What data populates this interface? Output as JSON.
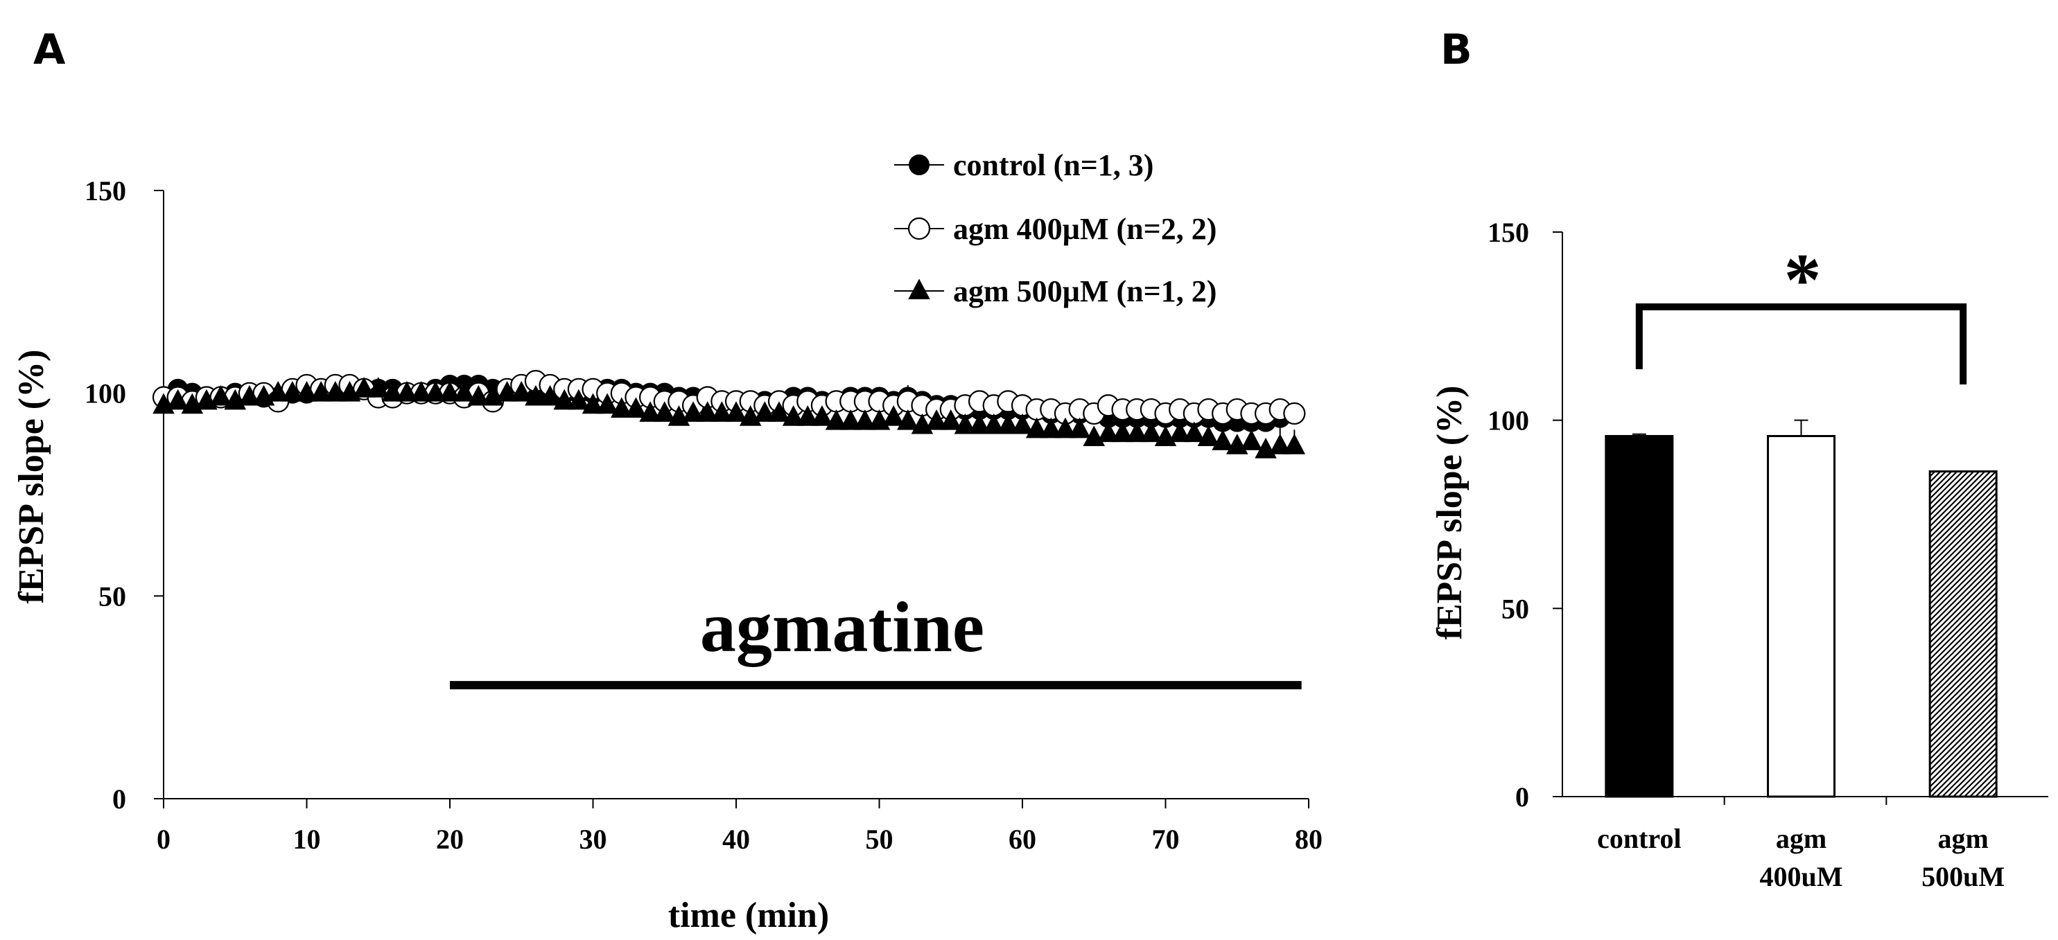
{
  "panel_a_label": "A",
  "panel_b_label": "B",
  "chart_data": [
    {
      "type": "scatter",
      "xlabel": "time (min)",
      "ylabel": "fEPSP slope (%)",
      "xlim": [
        0,
        80
      ],
      "ylim": [
        0,
        150
      ],
      "xticks": [
        0,
        10,
        20,
        30,
        40,
        50,
        60,
        70,
        80
      ],
      "yticks": [
        0,
        50,
        100,
        150
      ],
      "grid": false,
      "legend_position": "top-right",
      "annotation": {
        "text": "agmatine",
        "x_start": 20,
        "x_end": 79.5,
        "y": 28
      },
      "series": [
        {
          "name": "control (n=1, 3)",
          "marker": "filled-circle",
          "x": [
            0,
            1,
            2,
            3,
            4,
            5,
            6,
            7,
            8,
            9,
            10,
            11,
            12,
            13,
            14,
            15,
            16,
            17,
            18,
            19,
            20,
            21,
            22,
            23,
            24,
            25,
            26,
            27,
            28,
            29,
            30,
            31,
            32,
            33,
            34,
            35,
            36,
            37,
            38,
            39,
            40,
            41,
            42,
            43,
            44,
            45,
            46,
            47,
            48,
            49,
            50,
            51,
            52,
            53,
            54,
            55,
            56,
            57,
            58,
            59,
            60,
            61,
            62,
            63,
            64,
            65,
            66,
            67,
            68,
            69,
            70,
            71,
            72,
            73,
            74,
            75,
            76,
            77,
            78,
            79
          ],
          "y": [
            99,
            101,
            100,
            99,
            99,
            100,
            100,
            99,
            99,
            100,
            100,
            101,
            101,
            101,
            101,
            101,
            101,
            100,
            100,
            101,
            102,
            102,
            102,
            101,
            101,
            101,
            101,
            100,
            100,
            100,
            100,
            101,
            101,
            100,
            100,
            100,
            99,
            99,
            99,
            98,
            98,
            98,
            98,
            98,
            99,
            99,
            98,
            98,
            99,
            99,
            99,
            98,
            99,
            98,
            97,
            97,
            96,
            96,
            96,
            96,
            96,
            96,
            95,
            95,
            95,
            95,
            94,
            94,
            94,
            94,
            94,
            94,
            94,
            94,
            93,
            93,
            93,
            93,
            94,
            95
          ],
          "error": [
            0,
            0,
            0,
            0,
            0,
            0,
            0,
            0,
            0,
            0,
            0,
            0,
            0,
            0,
            0,
            0,
            0,
            0,
            0,
            0,
            0,
            0,
            0,
            0,
            0,
            0,
            0,
            0,
            0,
            0,
            0,
            0,
            0,
            0,
            0,
            0,
            0,
            0,
            0,
            0,
            0,
            0,
            0,
            0,
            0,
            0,
            0,
            0,
            0,
            0,
            2,
            0,
            3,
            0,
            0,
            0,
            0,
            0,
            0,
            0,
            0,
            0,
            0,
            0,
            0,
            0,
            0,
            0,
            0,
            0,
            0,
            0,
            0,
            0,
            0,
            0,
            0,
            0,
            0,
            0
          ]
        },
        {
          "name": "agm 400µM (n=2, 2)",
          "marker": "open-circle",
          "x": [
            0,
            1,
            2,
            3,
            4,
            5,
            6,
            7,
            8,
            9,
            10,
            11,
            12,
            13,
            14,
            15,
            16,
            17,
            18,
            19,
            20,
            21,
            22,
            23,
            24,
            25,
            26,
            27,
            28,
            29,
            30,
            31,
            32,
            33,
            34,
            35,
            36,
            37,
            38,
            39,
            40,
            41,
            42,
            43,
            44,
            45,
            46,
            47,
            48,
            49,
            50,
            51,
            52,
            53,
            54,
            55,
            56,
            57,
            58,
            59,
            60,
            61,
            62,
            63,
            64,
            65,
            66,
            67,
            68,
            69,
            70,
            71,
            72,
            73,
            74,
            75,
            76,
            77,
            78,
            79
          ],
          "y": [
            99,
            99,
            98,
            99,
            99,
            99,
            100,
            100,
            98,
            101,
            102,
            101,
            102,
            102,
            101,
            99,
            99,
            100,
            100,
            100,
            100,
            99,
            100,
            98,
            101,
            102,
            103,
            102,
            101,
            101,
            101,
            100,
            100,
            99,
            99,
            98,
            98,
            97,
            99,
            98,
            98,
            98,
            97,
            98,
            97,
            98,
            97,
            98,
            98,
            98,
            98,
            97,
            98,
            97,
            96,
            96,
            97,
            98,
            97,
            98,
            97,
            96,
            96,
            95,
            96,
            95,
            97,
            96,
            96,
            96,
            95,
            96,
            95,
            96,
            95,
            96,
            95,
            95,
            96,
            95
          ],
          "error": [
            0,
            0,
            0,
            0,
            0,
            0,
            0,
            0,
            0,
            0,
            0,
            0,
            0,
            0,
            0,
            0,
            0,
            0,
            0,
            0,
            0,
            0,
            0,
            0,
            0,
            0,
            0,
            0,
            0,
            0,
            0,
            0,
            0,
            0,
            0,
            0,
            0,
            0,
            0,
            0,
            0,
            0,
            0,
            0,
            0,
            0,
            0,
            0,
            0,
            0,
            0,
            0,
            0,
            0,
            0,
            0,
            0,
            0,
            0,
            0,
            0,
            0,
            0,
            0,
            0,
            0,
            0,
            0,
            0,
            0,
            0,
            0,
            0,
            0,
            0,
            0,
            0,
            0,
            0,
            0
          ]
        },
        {
          "name": "agm 500µM (n=1, 2)",
          "marker": "filled-triangle",
          "x": [
            0,
            1,
            2,
            3,
            4,
            5,
            6,
            7,
            8,
            9,
            10,
            11,
            12,
            13,
            14,
            15,
            16,
            17,
            18,
            19,
            20,
            21,
            22,
            23,
            24,
            25,
            26,
            27,
            28,
            29,
            30,
            31,
            32,
            33,
            34,
            35,
            36,
            37,
            38,
            39,
            40,
            41,
            42,
            43,
            44,
            45,
            46,
            47,
            48,
            49,
            50,
            51,
            52,
            53,
            54,
            55,
            56,
            57,
            58,
            59,
            60,
            61,
            62,
            63,
            64,
            65,
            66,
            67,
            68,
            69,
            70,
            71,
            72,
            73,
            74,
            75,
            76,
            77,
            78,
            79
          ],
          "y": [
            97,
            98,
            97,
            98,
            99,
            98,
            99,
            99,
            100,
            100,
            100,
            100,
            100,
            100,
            101,
            101,
            100,
            100,
            100,
            100,
            100,
            100,
            99,
            99,
            100,
            100,
            99,
            99,
            98,
            98,
            97,
            97,
            96,
            96,
            95,
            95,
            94,
            95,
            95,
            95,
            95,
            94,
            95,
            95,
            94,
            94,
            94,
            93,
            93,
            93,
            93,
            94,
            93,
            92,
            93,
            93,
            92,
            92,
            92,
            92,
            92,
            91,
            91,
            91,
            91,
            89,
            90,
            90,
            90,
            90,
            89,
            90,
            90,
            89,
            88,
            87,
            88,
            86,
            87,
            87
          ],
          "error": [
            0,
            0,
            0,
            0,
            0,
            0,
            0,
            0,
            0,
            0,
            0,
            0,
            0,
            0,
            0,
            0,
            0,
            0,
            0,
            0,
            0,
            0,
            0,
            0,
            0,
            0,
            0,
            0,
            0,
            0,
            0,
            0,
            0,
            0,
            0,
            0,
            0,
            0,
            0,
            0,
            0,
            0,
            0,
            0,
            0,
            0,
            0,
            0,
            0,
            0,
            0,
            0,
            0,
            0,
            0,
            0,
            0,
            0,
            0,
            0,
            0,
            0,
            0,
            0,
            0,
            0,
            4,
            0,
            5,
            0,
            0,
            4,
            0,
            0,
            5,
            0,
            4,
            0,
            5,
            4
          ]
        }
      ]
    },
    {
      "type": "bar",
      "ylabel": "fEPSP slope (%)",
      "ylim": [
        0,
        150
      ],
      "yticks": [
        0,
        50,
        100,
        150
      ],
      "grid": false,
      "categories": [
        [
          "control"
        ],
        [
          "agm",
          "400uM"
        ],
        [
          "agm",
          "500uM"
        ]
      ],
      "values": [
        95.8,
        95.8,
        86.4
      ],
      "errors": [
        0.5,
        4.2,
        0.3
      ],
      "bar_fills": [
        "#000000",
        "#ffffff",
        "hatched"
      ],
      "significance": {
        "text": "*",
        "from": 0,
        "to": 2
      }
    }
  ]
}
